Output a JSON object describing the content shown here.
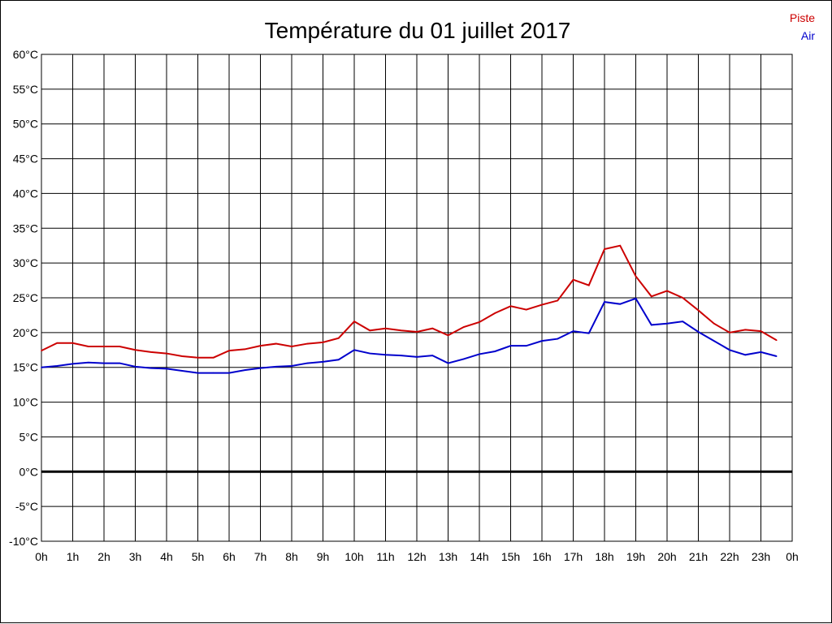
{
  "chart_data": {
    "type": "line",
    "title": "Température du 01 juillet 2017",
    "xlabel": "",
    "ylabel": "",
    "x_tick_labels": [
      "0h",
      "1h",
      "2h",
      "3h",
      "4h",
      "5h",
      "6h",
      "7h",
      "8h",
      "9h",
      "10h",
      "11h",
      "12h",
      "13h",
      "14h",
      "15h",
      "16h",
      "17h",
      "18h",
      "19h",
      "20h",
      "21h",
      "22h",
      "23h",
      "0h"
    ],
    "y_tick_labels": [
      "60°C",
      "55°C",
      "50°C",
      "45°C",
      "40°C",
      "35°C",
      "30°C",
      "25°C",
      "20°C",
      "15°C",
      "10°C",
      "5°C",
      "0°C",
      "-5°C",
      "-10°C"
    ],
    "y_ticks": [
      60,
      55,
      50,
      45,
      40,
      35,
      30,
      25,
      20,
      15,
      10,
      5,
      0,
      -5,
      -10
    ],
    "xlim": [
      0,
      24
    ],
    "ylim": [
      -10,
      60
    ],
    "grid": true,
    "legend_position": "top-right",
    "x": [
      0,
      0.5,
      1,
      1.5,
      2,
      2.5,
      3,
      3.5,
      4,
      4.5,
      5,
      5.5,
      6,
      6.5,
      7,
      7.5,
      8,
      8.5,
      9,
      9.5,
      10,
      10.5,
      11,
      11.5,
      12,
      12.5,
      13,
      13.5,
      14,
      14.5,
      15,
      15.5,
      16,
      16.5,
      17,
      17.5,
      18,
      18.5,
      19,
      19.5,
      20,
      20.5,
      21,
      21.5,
      22,
      22.5,
      23,
      23.5
    ],
    "series": [
      {
        "name": "Piste",
        "color": "#cc0000",
        "values": [
          17.4,
          18.5,
          18.5,
          18.0,
          18.0,
          18.0,
          17.5,
          17.2,
          17.0,
          16.6,
          16.4,
          16.4,
          17.4,
          17.6,
          18.1,
          18.4,
          18.0,
          18.4,
          18.6,
          19.2,
          21.6,
          20.3,
          20.6,
          20.3,
          20.1,
          20.6,
          19.6,
          20.8,
          21.5,
          22.8,
          23.8,
          23.3,
          24.0,
          24.6,
          27.6,
          26.8,
          32.0,
          32.5,
          28.1,
          25.2,
          26.0,
          25.0,
          23.2,
          21.3,
          20.0,
          20.4,
          20.2,
          18.9
        ]
      },
      {
        "name": "Air",
        "color": "#0000cc",
        "values": [
          15.0,
          15.2,
          15.5,
          15.7,
          15.6,
          15.6,
          15.1,
          14.9,
          14.8,
          14.5,
          14.2,
          14.2,
          14.2,
          14.6,
          14.9,
          15.1,
          15.2,
          15.6,
          15.8,
          16.1,
          17.5,
          17.0,
          16.8,
          16.7,
          16.5,
          16.7,
          15.6,
          16.2,
          16.9,
          17.3,
          18.1,
          18.1,
          18.8,
          19.1,
          20.2,
          19.9,
          24.4,
          24.1,
          24.9,
          21.1,
          21.3,
          21.6,
          20.1,
          18.8,
          17.5,
          16.8,
          17.2,
          16.6
        ]
      }
    ]
  }
}
